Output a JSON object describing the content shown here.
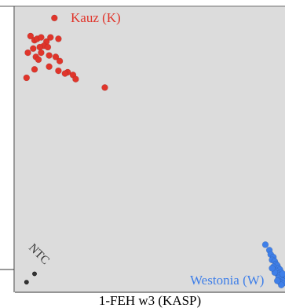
{
  "chart_data": {
    "type": "scatter",
    "title": "1-FEH w3 (KASP)",
    "xlim": [
      0,
      1
    ],
    "ylim": [
      0,
      1
    ],
    "grid": false,
    "series": [
      {
        "name": "Kauz (K)",
        "color": "#e0352b",
        "points": [
          [
            0.14,
            0.975
          ],
          [
            0.05,
            0.91
          ],
          [
            0.065,
            0.895
          ],
          [
            0.075,
            0.9
          ],
          [
            0.09,
            0.905
          ],
          [
            0.11,
            0.89
          ],
          [
            0.125,
            0.905
          ],
          [
            0.155,
            0.9
          ],
          [
            0.1,
            0.875
          ],
          [
            0.085,
            0.87
          ],
          [
            0.115,
            0.87
          ],
          [
            0.06,
            0.865
          ],
          [
            0.04,
            0.85
          ],
          [
            0.09,
            0.85
          ],
          [
            0.07,
            0.835
          ],
          [
            0.12,
            0.84
          ],
          [
            0.145,
            0.835
          ],
          [
            0.08,
            0.825
          ],
          [
            0.16,
            0.82
          ],
          [
            0.12,
            0.8
          ],
          [
            0.065,
            0.79
          ],
          [
            0.155,
            0.785
          ],
          [
            0.19,
            0.78
          ],
          [
            0.21,
            0.77
          ],
          [
            0.18,
            0.775
          ],
          [
            0.22,
            0.755
          ],
          [
            0.035,
            0.76
          ],
          [
            0.33,
            0.725
          ]
        ]
      },
      {
        "name": "Westonia (W)",
        "color": "#3f7fe8",
        "points": [
          [
            0.935,
            0.16
          ],
          [
            0.95,
            0.14
          ],
          [
            0.955,
            0.125
          ],
          [
            0.965,
            0.115
          ],
          [
            0.96,
            0.105
          ],
          [
            0.97,
            0.1
          ],
          [
            0.975,
            0.09
          ],
          [
            0.98,
            0.085
          ],
          [
            0.965,
            0.08
          ],
          [
            0.985,
            0.075
          ],
          [
            0.99,
            0.07
          ],
          [
            0.975,
            0.065
          ],
          [
            0.995,
            0.06
          ],
          [
            0.98,
            0.055
          ],
          [
            0.99,
            0.05
          ],
          [
            1.0,
            0.045
          ],
          [
            0.985,
            0.04
          ],
          [
            0.995,
            0.035
          ],
          [
            1.0,
            0.03
          ],
          [
            0.99,
            0.025
          ],
          [
            1.0,
            0.02
          ],
          [
            0.995,
            0.015
          ],
          [
            0.97,
            0.06
          ],
          [
            0.96,
            0.075
          ],
          [
            1.0,
            0.055
          ],
          [
            0.98,
            0.03
          ]
        ]
      },
      {
        "name": "NTC",
        "color": "#333333",
        "points": [
          [
            0.065,
            0.055
          ],
          [
            0.035,
            0.025
          ]
        ]
      }
    ]
  }
}
